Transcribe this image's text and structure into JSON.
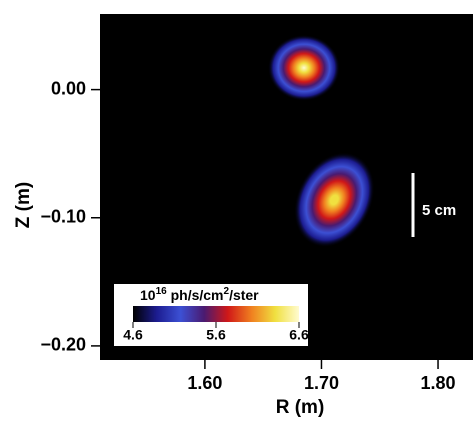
{
  "chart_data": {
    "type": "emission-map",
    "xlabel": "R (m)",
    "ylabel": "Z (m)",
    "xlim": [
      1.51,
      1.83
    ],
    "ylim": [
      -0.211,
      0.059
    ],
    "xticks": [
      {
        "value": 1.6,
        "label": "1.60"
      },
      {
        "value": 1.7,
        "label": "1.70"
      },
      {
        "value": 1.8,
        "label": "1.80"
      }
    ],
    "yticks": [
      {
        "value": 0,
        "label": "0.00"
      },
      {
        "value": -0.1,
        "label": "−0.10"
      },
      {
        "value": -0.2,
        "label": "−0.20"
      }
    ],
    "blobs": [
      {
        "r": 1.685,
        "z": 0.017,
        "peak": 6.6
      },
      {
        "r": 1.711,
        "z": -0.086,
        "peak": 6.5
      }
    ],
    "colorbar": {
      "label_parts": [
        "10",
        "16",
        " ph/s/cm",
        "2",
        "/ster"
      ],
      "lim": [
        4.6,
        6.6
      ],
      "ticks": [
        4.6,
        5.6,
        6.6
      ],
      "colors": [
        "#000000",
        "#1c1c90",
        "#3c50d4",
        "#4a1a70",
        "#d01818",
        "#f08020",
        "#f0e040",
        "#fffbd0"
      ]
    },
    "scale_bar_label": "5 cm",
    "background": "#000000"
  }
}
